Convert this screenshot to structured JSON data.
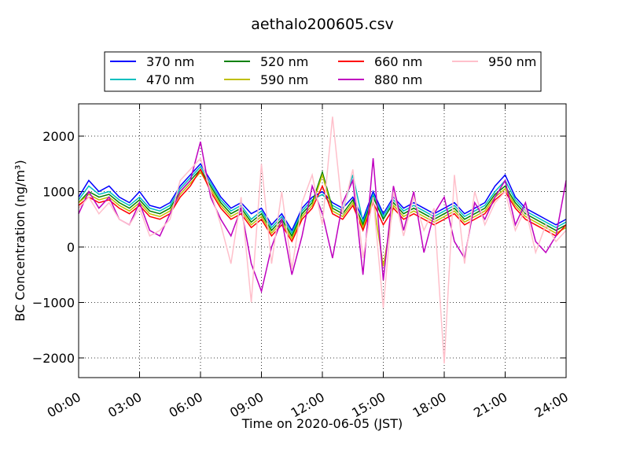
{
  "chart_data": {
    "type": "line",
    "title": "aethalo200605.csv",
    "xlabel": "Time on 2020-06-05 (JST)",
    "ylabel": "BC Concentration (ng/m³)",
    "x": [
      0,
      0.5,
      1,
      1.5,
      2,
      2.5,
      3,
      3.5,
      4,
      4.5,
      5,
      5.5,
      6,
      6.5,
      7,
      7.5,
      8,
      8.5,
      9,
      9.5,
      10,
      10.5,
      11,
      11.5,
      12,
      12.5,
      13,
      13.5,
      14,
      14.5,
      15,
      15.5,
      16,
      16.5,
      17,
      17.5,
      18,
      18.5,
      19,
      19.5,
      20,
      20.5,
      21,
      21.5,
      22,
      22.5,
      23,
      23.5,
      24
    ],
    "xlim": [
      0,
      24
    ],
    "xticks": [
      {
        "value": 0,
        "label": "00:00"
      },
      {
        "value": 3,
        "label": "03:00"
      },
      {
        "value": 6,
        "label": "06:00"
      },
      {
        "value": 9,
        "label": "09:00"
      },
      {
        "value": 12,
        "label": "12:00"
      },
      {
        "value": 15,
        "label": "15:00"
      },
      {
        "value": 18,
        "label": "18:00"
      },
      {
        "value": 21,
        "label": "21:00"
      },
      {
        "value": 24,
        "label": "24:00"
      }
    ],
    "ylim": [
      -2355,
      2582
    ],
    "yticks": [
      {
        "value": -2000,
        "label": "−2000"
      },
      {
        "value": -1000,
        "label": "−1000"
      },
      0,
      1000,
      2000
    ],
    "grid": true,
    "series": [
      {
        "name": "370 nm",
        "color": "#0000ff",
        "values": [
          900,
          1200,
          1000,
          1100,
          900,
          800,
          1000,
          750,
          700,
          800,
          1100,
          1300,
          1500,
          1200,
          900,
          700,
          800,
          600,
          700,
          400,
          600,
          300,
          700,
          900,
          1000,
          800,
          700,
          900,
          500,
          1000,
          600,
          900,
          700,
          800,
          700,
          600,
          700,
          800,
          600,
          700,
          800,
          1100,
          1300,
          900,
          700,
          600,
          500,
          400,
          500
        ]
      },
      {
        "name": "470 nm",
        "color": "#00bfbf",
        "values": [
          850,
          1100,
          950,
          1000,
          850,
          750,
          900,
          700,
          650,
          750,
          1050,
          1250,
          1450,
          1150,
          850,
          650,
          750,
          500,
          650,
          350,
          550,
          250,
          650,
          850,
          950,
          750,
          650,
          1300,
          450,
          950,
          550,
          850,
          650,
          750,
          650,
          550,
          650,
          750,
          550,
          650,
          750,
          1000,
          1200,
          850,
          650,
          550,
          450,
          350,
          450
        ]
      },
      {
        "name": "520 nm",
        "color": "#008000",
        "values": [
          800,
          1000,
          900,
          950,
          800,
          700,
          850,
          650,
          600,
          700,
          1000,
          1200,
          1400,
          1100,
          800,
          600,
          700,
          450,
          600,
          300,
          500,
          200,
          600,
          800,
          1350,
          700,
          600,
          850,
          400,
          900,
          500,
          800,
          600,
          700,
          600,
          500,
          600,
          700,
          500,
          600,
          700,
          950,
          1100,
          800,
          600,
          500,
          400,
          300,
          400
        ]
      },
      {
        "name": "590 nm",
        "color": "#bfbf00",
        "values": [
          800,
          950,
          850,
          900,
          750,
          650,
          800,
          600,
          550,
          650,
          950,
          1150,
          1350,
          1050,
          750,
          550,
          650,
          400,
          550,
          250,
          450,
          150,
          550,
          750,
          1300,
          650,
          550,
          800,
          350,
          850,
          -350,
          750,
          550,
          650,
          550,
          450,
          550,
          650,
          450,
          550,
          650,
          900,
          1050,
          750,
          550,
          450,
          350,
          250,
          350
        ]
      },
      {
        "name": "660 nm",
        "color": "#ff0000",
        "values": [
          750,
          900,
          800,
          850,
          700,
          600,
          750,
          550,
          500,
          600,
          900,
          1100,
          1400,
          1000,
          700,
          500,
          600,
          350,
          500,
          200,
          400,
          100,
          500,
          700,
          1100,
          600,
          500,
          750,
          300,
          800,
          400,
          700,
          500,
          600,
          500,
          400,
          500,
          600,
          400,
          500,
          600,
          850,
          1000,
          700,
          500,
          400,
          300,
          200,
          400
        ]
      },
      {
        "name": "880 nm",
        "color": "#bf00bf",
        "values": [
          600,
          1000,
          700,
          900,
          500,
          400,
          800,
          300,
          200,
          600,
          1000,
          1200,
          1900,
          900,
          500,
          200,
          700,
          -300,
          -800,
          0,
          500,
          -500,
          200,
          1100,
          600,
          -200,
          800,
          1200,
          -500,
          1600,
          -600,
          1100,
          300,
          1000,
          -100,
          600,
          900,
          100,
          -200,
          800,
          500,
          900,
          1200,
          400,
          800,
          100,
          -100,
          200,
          1200
        ]
      },
      {
        "name": "950 nm",
        "color": "#ffc0cb",
        "values": [
          700,
          900,
          600,
          800,
          500,
          400,
          700,
          200,
          300,
          500,
          1200,
          1400,
          1600,
          1000,
          400,
          -300,
          900,
          -1000,
          1500,
          -300,
          1000,
          -400,
          800,
          1300,
          400,
          2350,
          600,
          1400,
          -200,
          900,
          -1100,
          1000,
          200,
          900,
          300,
          700,
          -2100,
          1300,
          -300,
          1000,
          400,
          800,
          1000,
          300,
          700,
          -100,
          400,
          100,
          300
        ]
      }
    ]
  }
}
